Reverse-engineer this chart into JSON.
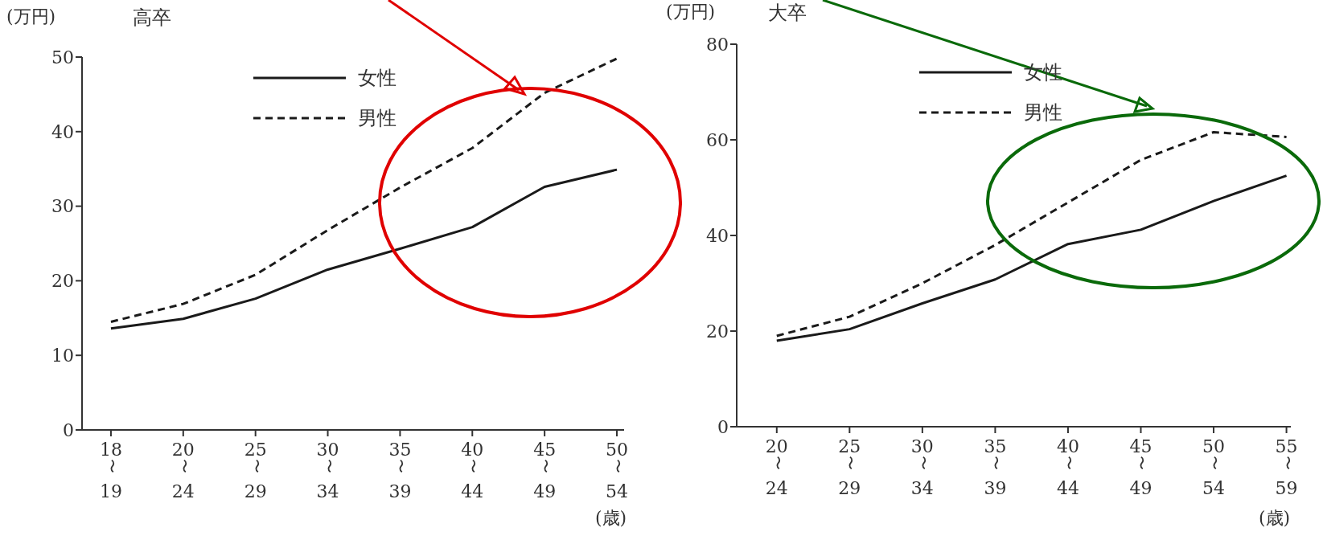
{
  "chart_data": [
    {
      "type": "line",
      "title": "高卒",
      "ylabel": "(万円)",
      "xlabel": "(歳)",
      "categories": [
        "18〜19",
        "20〜24",
        "25〜29",
        "30〜34",
        "35〜39",
        "40〜44",
        "45〜49",
        "50〜54"
      ],
      "ylim": [
        0,
        50
      ],
      "yticks": [
        0,
        10,
        20,
        30,
        40,
        50
      ],
      "legend": "top",
      "marker": "none",
      "series": [
        {
          "name": "女性",
          "color": "#1a1a1a",
          "line_style": "solid",
          "values": [
            13.6,
            14.9,
            17.6,
            21.5,
            24.3,
            27.2,
            32.6,
            34.9
          ]
        },
        {
          "name": "男性",
          "color": "#1a1a1a",
          "line_style": "dashed",
          "values": [
            14.5,
            16.9,
            20.8,
            26.8,
            32.5,
            37.8,
            45.2,
            49.8
          ]
        }
      ]
    },
    {
      "type": "line",
      "title": "大卒",
      "ylabel": "(万円)",
      "xlabel": "(歳)",
      "categories": [
        "20〜24",
        "25〜29",
        "30〜34",
        "35〜39",
        "40〜44",
        "45〜49",
        "50〜54",
        "55〜59"
      ],
      "ylim": [
        0,
        80
      ],
      "yticks": [
        0,
        20,
        40,
        60,
        80
      ],
      "legend": "top",
      "marker": "none",
      "series": [
        {
          "name": "女性",
          "color": "#1a1a1a",
          "line_style": "solid",
          "values": [
            18.0,
            20.4,
            25.8,
            30.8,
            38.2,
            41.2,
            47.2,
            52.5
          ]
        },
        {
          "name": "男性",
          "color": "#1a1a1a",
          "line_style": "dashed",
          "values": [
            19.0,
            23.0,
            30.0,
            38.0,
            46.9,
            55.8,
            61.6,
            60.6
          ]
        }
      ]
    }
  ]
}
